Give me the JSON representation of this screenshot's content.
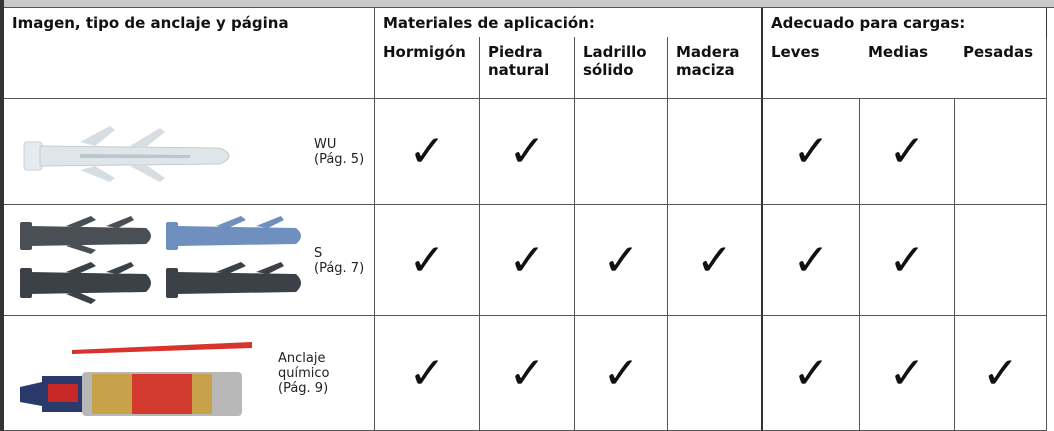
{
  "header": {
    "anchor_column": "Imagen, tipo de anclaje y página",
    "materials_group": "Materiales de aplicación:",
    "loads_group": "Adecuado para cargas:",
    "materials": [
      [
        "Hormigón"
      ],
      [
        "Piedra",
        "natural"
      ],
      [
        "Ladrillo",
        "sólido"
      ],
      [
        "Madera",
        "maciza"
      ]
    ],
    "loads": [
      [
        "Leves"
      ],
      [
        "Medias"
      ],
      [
        "Pesadas"
      ]
    ]
  },
  "rows": [
    {
      "label": [
        "WU",
        "(Pág. 5)"
      ],
      "cells": [
        "✓",
        "✓",
        null,
        null,
        "✓",
        "✓",
        null
      ]
    },
    {
      "label": [
        "S",
        "(Pág. 7)"
      ],
      "cells": [
        "✓",
        "✓",
        "✓",
        "✓",
        "✓",
        "✓",
        null
      ]
    },
    {
      "label": [
        "Anclaje",
        "químico",
        "(Pág. 9)"
      ],
      "cells": [
        "✓",
        "✓",
        "✓",
        null,
        "✓",
        "✓",
        "✓"
      ]
    }
  ]
}
